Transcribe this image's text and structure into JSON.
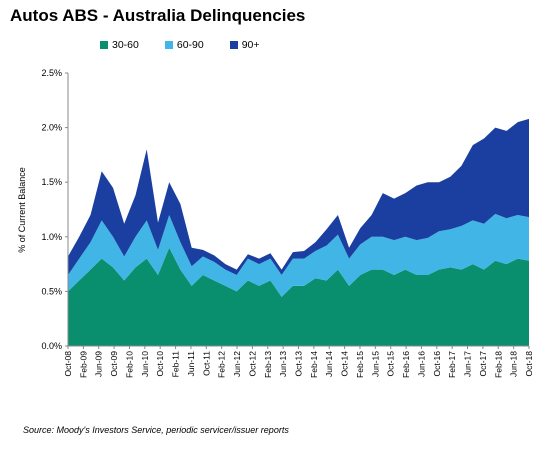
{
  "chart_data": {
    "type": "area",
    "stacked": true,
    "title": "Autos ABS - Australia Delinquencies",
    "xlabel": "",
    "ylabel": "% of Current Balance",
    "ylim": [
      0,
      2.5
    ],
    "yticks": [
      "0.0%",
      "0.5%",
      "1.0%",
      "1.5%",
      "2.0%",
      "2.5%"
    ],
    "xticks": [
      "Oct-08",
      "Feb-09",
      "Jun-09",
      "Oct-09",
      "Feb-10",
      "Jun-10",
      "Oct-10",
      "Feb-11",
      "Jun-11",
      "Oct-11",
      "Feb-12",
      "Jun-12",
      "Oct-12",
      "Feb-13",
      "Jun-13",
      "Oct-13",
      "Feb-14",
      "Jun-14",
      "Oct-14",
      "Feb-15",
      "Jun-15",
      "Oct-15",
      "Feb-16",
      "Jun-16",
      "Oct-16",
      "Feb-17",
      "Jun-17",
      "Oct-17",
      "Feb-18",
      "Jun-18",
      "Oct-18"
    ],
    "legend_position": "top",
    "grid": false,
    "series": [
      {
        "name": "30-60",
        "color": "#0a8f6e",
        "values": [
          0.5,
          0.6,
          0.7,
          0.8,
          0.72,
          0.6,
          0.72,
          0.8,
          0.65,
          0.9,
          0.7,
          0.55,
          0.65,
          0.6,
          0.55,
          0.5,
          0.6,
          0.55,
          0.6,
          0.45,
          0.55,
          0.55,
          0.62,
          0.6,
          0.7,
          0.55,
          0.65,
          0.7,
          0.7,
          0.65,
          0.7,
          0.65,
          0.65,
          0.7,
          0.72,
          0.7,
          0.75,
          0.7,
          0.78,
          0.75,
          0.8,
          0.78
        ]
      },
      {
        "name": "60-90",
        "color": "#41b6e6",
        "values": [
          0.15,
          0.2,
          0.25,
          0.35,
          0.28,
          0.22,
          0.28,
          0.35,
          0.23,
          0.3,
          0.25,
          0.18,
          0.17,
          0.17,
          0.15,
          0.15,
          0.2,
          0.2,
          0.2,
          0.2,
          0.25,
          0.25,
          0.25,
          0.32,
          0.32,
          0.25,
          0.28,
          0.3,
          0.3,
          0.32,
          0.3,
          0.32,
          0.34,
          0.35,
          0.35,
          0.4,
          0.4,
          0.42,
          0.43,
          0.42,
          0.4,
          0.4
        ]
      },
      {
        "name": "90+",
        "color": "#1b3fa0",
        "values": [
          0.17,
          0.2,
          0.25,
          0.45,
          0.45,
          0.3,
          0.38,
          0.65,
          0.25,
          0.3,
          0.35,
          0.17,
          0.06,
          0.06,
          0.05,
          0.05,
          0.04,
          0.05,
          0.05,
          0.05,
          0.06,
          0.07,
          0.08,
          0.15,
          0.18,
          0.1,
          0.15,
          0.2,
          0.4,
          0.38,
          0.4,
          0.5,
          0.51,
          0.45,
          0.48,
          0.55,
          0.69,
          0.78,
          0.79,
          0.8,
          0.85,
          0.9
        ]
      }
    ],
    "source": "Source: Moody's Investors Service, periodic servicer/issuer reports"
  }
}
